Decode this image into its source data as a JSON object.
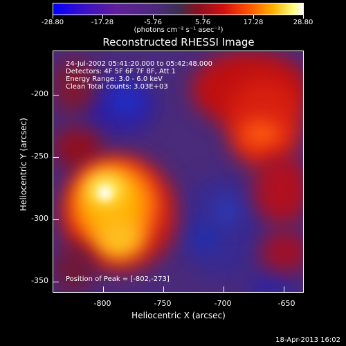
{
  "colorbar": {
    "ticks": [
      "-28.80",
      "-17.28",
      "-5.76",
      "5.76",
      "17.28",
      "28.80"
    ],
    "unit_label": "(photons cm⁻² s⁻¹ asec⁻²)"
  },
  "plot": {
    "title": "Reconstructed RHESSI Image",
    "info_lines": [
      "24-Jul-2002 05:41:20.000 to 05:42:48.000",
      "Detectors: 4F 5F 6F 7F 8F, Att 1",
      "Energy Range: 3.0 - 6.0 keV",
      "Clean     Total counts: 3.03E+03"
    ],
    "peak_label": "Position of Peak = [-802,-273]",
    "x_axis": {
      "label": "Heliocentric X (arcsec)",
      "ticks": [
        "-800",
        "-750",
        "-700",
        "-650"
      ]
    },
    "y_axis": {
      "label": "Heliocentric Y (arcsec)",
      "ticks": [
        "-200",
        "-250",
        "-300",
        "-350"
      ]
    }
  },
  "footer": {
    "timestamp": "18-Apr-2013 16:02"
  }
}
